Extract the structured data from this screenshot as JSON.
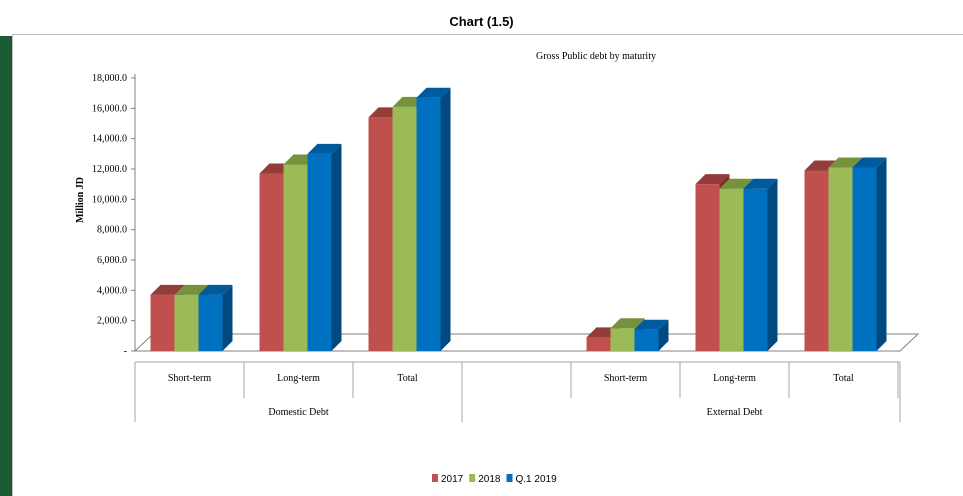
{
  "heading": "Chart (1.5)",
  "chart_data": {
    "type": "bar",
    "title": "Gross Public debt by maturity",
    "ylabel": "Million JD",
    "xlabel": "",
    "ylim": [
      0,
      18000
    ],
    "y_ticks": [
      "-",
      "2,000.0",
      "4,000.0",
      "6,000.0",
      "8,000.0",
      "10,000.0",
      "12,000.0",
      "14,000.0",
      "16,000.0",
      "18,000.0"
    ],
    "groups": [
      {
        "label": "Domestic Debt",
        "categories": [
          "Short-term",
          "Long-term",
          "Total"
        ]
      },
      {
        "label": "External Debt",
        "categories": [
          "Short-term",
          "Long-term",
          "Total"
        ]
      }
    ],
    "series": [
      {
        "name": "2017",
        "color": "#c0504d",
        "top": "#943c39",
        "side": "#7f2d2a",
        "values": [
          [
            3700,
            11700,
            15400
          ],
          [
            900,
            11000,
            11900
          ]
        ]
      },
      {
        "name": "2018",
        "color": "#9bbb59",
        "top": "#76923c",
        "side": "#5f7530",
        "values": [
          [
            3700,
            12300,
            16100
          ],
          [
            1500,
            10700,
            12100
          ]
        ]
      },
      {
        "name": "Q.1 2019",
        "color": "#0070c0",
        "top": "#005a9e",
        "side": "#004a80",
        "values": [
          [
            3700,
            13000,
            16700
          ],
          [
            1400,
            10700,
            12100
          ]
        ]
      }
    ],
    "legend_position": "bottom",
    "grid": false
  }
}
